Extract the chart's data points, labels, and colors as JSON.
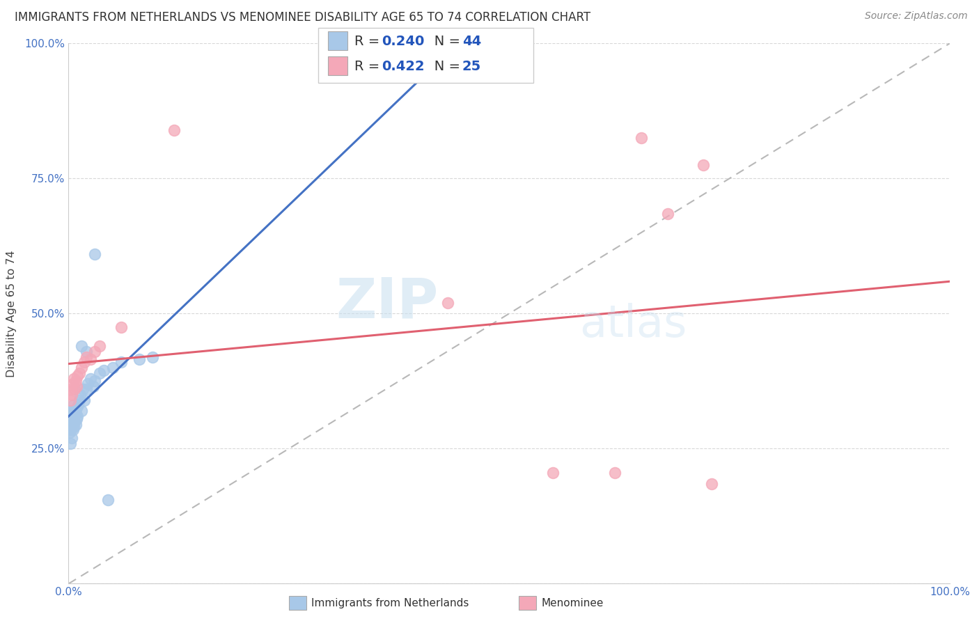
{
  "title": "IMMIGRANTS FROM NETHERLANDS VS MENOMINEE DISABILITY AGE 65 TO 74 CORRELATION CHART",
  "source": "Source: ZipAtlas.com",
  "ylabel": "Disability Age 65 to 74",
  "xmin": 0.0,
  "xmax": 1.0,
  "ymin": 0.0,
  "ymax": 1.0,
  "blue_R": 0.24,
  "blue_N": 44,
  "pink_R": 0.422,
  "pink_N": 25,
  "blue_label": "Immigrants from Netherlands",
  "pink_label": "Menominee",
  "blue_color": "#a8c8e8",
  "pink_color": "#f4a8b8",
  "blue_line_color": "#4472c4",
  "pink_line_color": "#e06070",
  "dashed_line_color": "#b8b8b8",
  "legend_R_color": "#2255bb",
  "background_color": "#ffffff",
  "watermark_zip": "ZIP",
  "watermark_atlas": "atlas",
  "grid_color": "#d8d8d8",
  "blue_scatter_x": [
    0.001,
    0.001,
    0.002,
    0.002,
    0.002,
    0.003,
    0.003,
    0.003,
    0.004,
    0.004,
    0.004,
    0.005,
    0.005,
    0.005,
    0.006,
    0.006,
    0.007,
    0.007,
    0.008,
    0.008,
    0.009,
    0.009,
    0.01,
    0.011,
    0.012,
    0.013,
    0.015,
    0.016,
    0.018,
    0.02,
    0.022,
    0.025,
    0.028,
    0.03,
    0.035,
    0.04,
    0.05,
    0.06,
    0.08,
    0.095,
    0.03,
    0.015,
    0.02,
    0.045
  ],
  "blue_scatter_y": [
    0.28,
    0.3,
    0.29,
    0.31,
    0.26,
    0.285,
    0.295,
    0.315,
    0.27,
    0.3,
    0.32,
    0.285,
    0.305,
    0.33,
    0.29,
    0.31,
    0.3,
    0.32,
    0.295,
    0.315,
    0.305,
    0.325,
    0.31,
    0.33,
    0.34,
    0.35,
    0.32,
    0.36,
    0.34,
    0.36,
    0.37,
    0.38,
    0.365,
    0.375,
    0.39,
    0.395,
    0.4,
    0.41,
    0.415,
    0.42,
    0.61,
    0.44,
    0.43,
    0.155
  ],
  "pink_scatter_x": [
    0.002,
    0.003,
    0.004,
    0.005,
    0.006,
    0.007,
    0.008,
    0.009,
    0.01,
    0.012,
    0.015,
    0.018,
    0.02,
    0.025,
    0.03,
    0.035,
    0.12,
    0.43,
    0.55,
    0.62,
    0.65,
    0.68,
    0.72,
    0.73,
    0.06
  ],
  "pink_scatter_y": [
    0.34,
    0.36,
    0.35,
    0.37,
    0.38,
    0.36,
    0.375,
    0.365,
    0.385,
    0.39,
    0.4,
    0.41,
    0.42,
    0.415,
    0.43,
    0.44,
    0.84,
    0.52,
    0.205,
    0.205,
    0.825,
    0.685,
    0.775,
    0.185,
    0.475
  ]
}
